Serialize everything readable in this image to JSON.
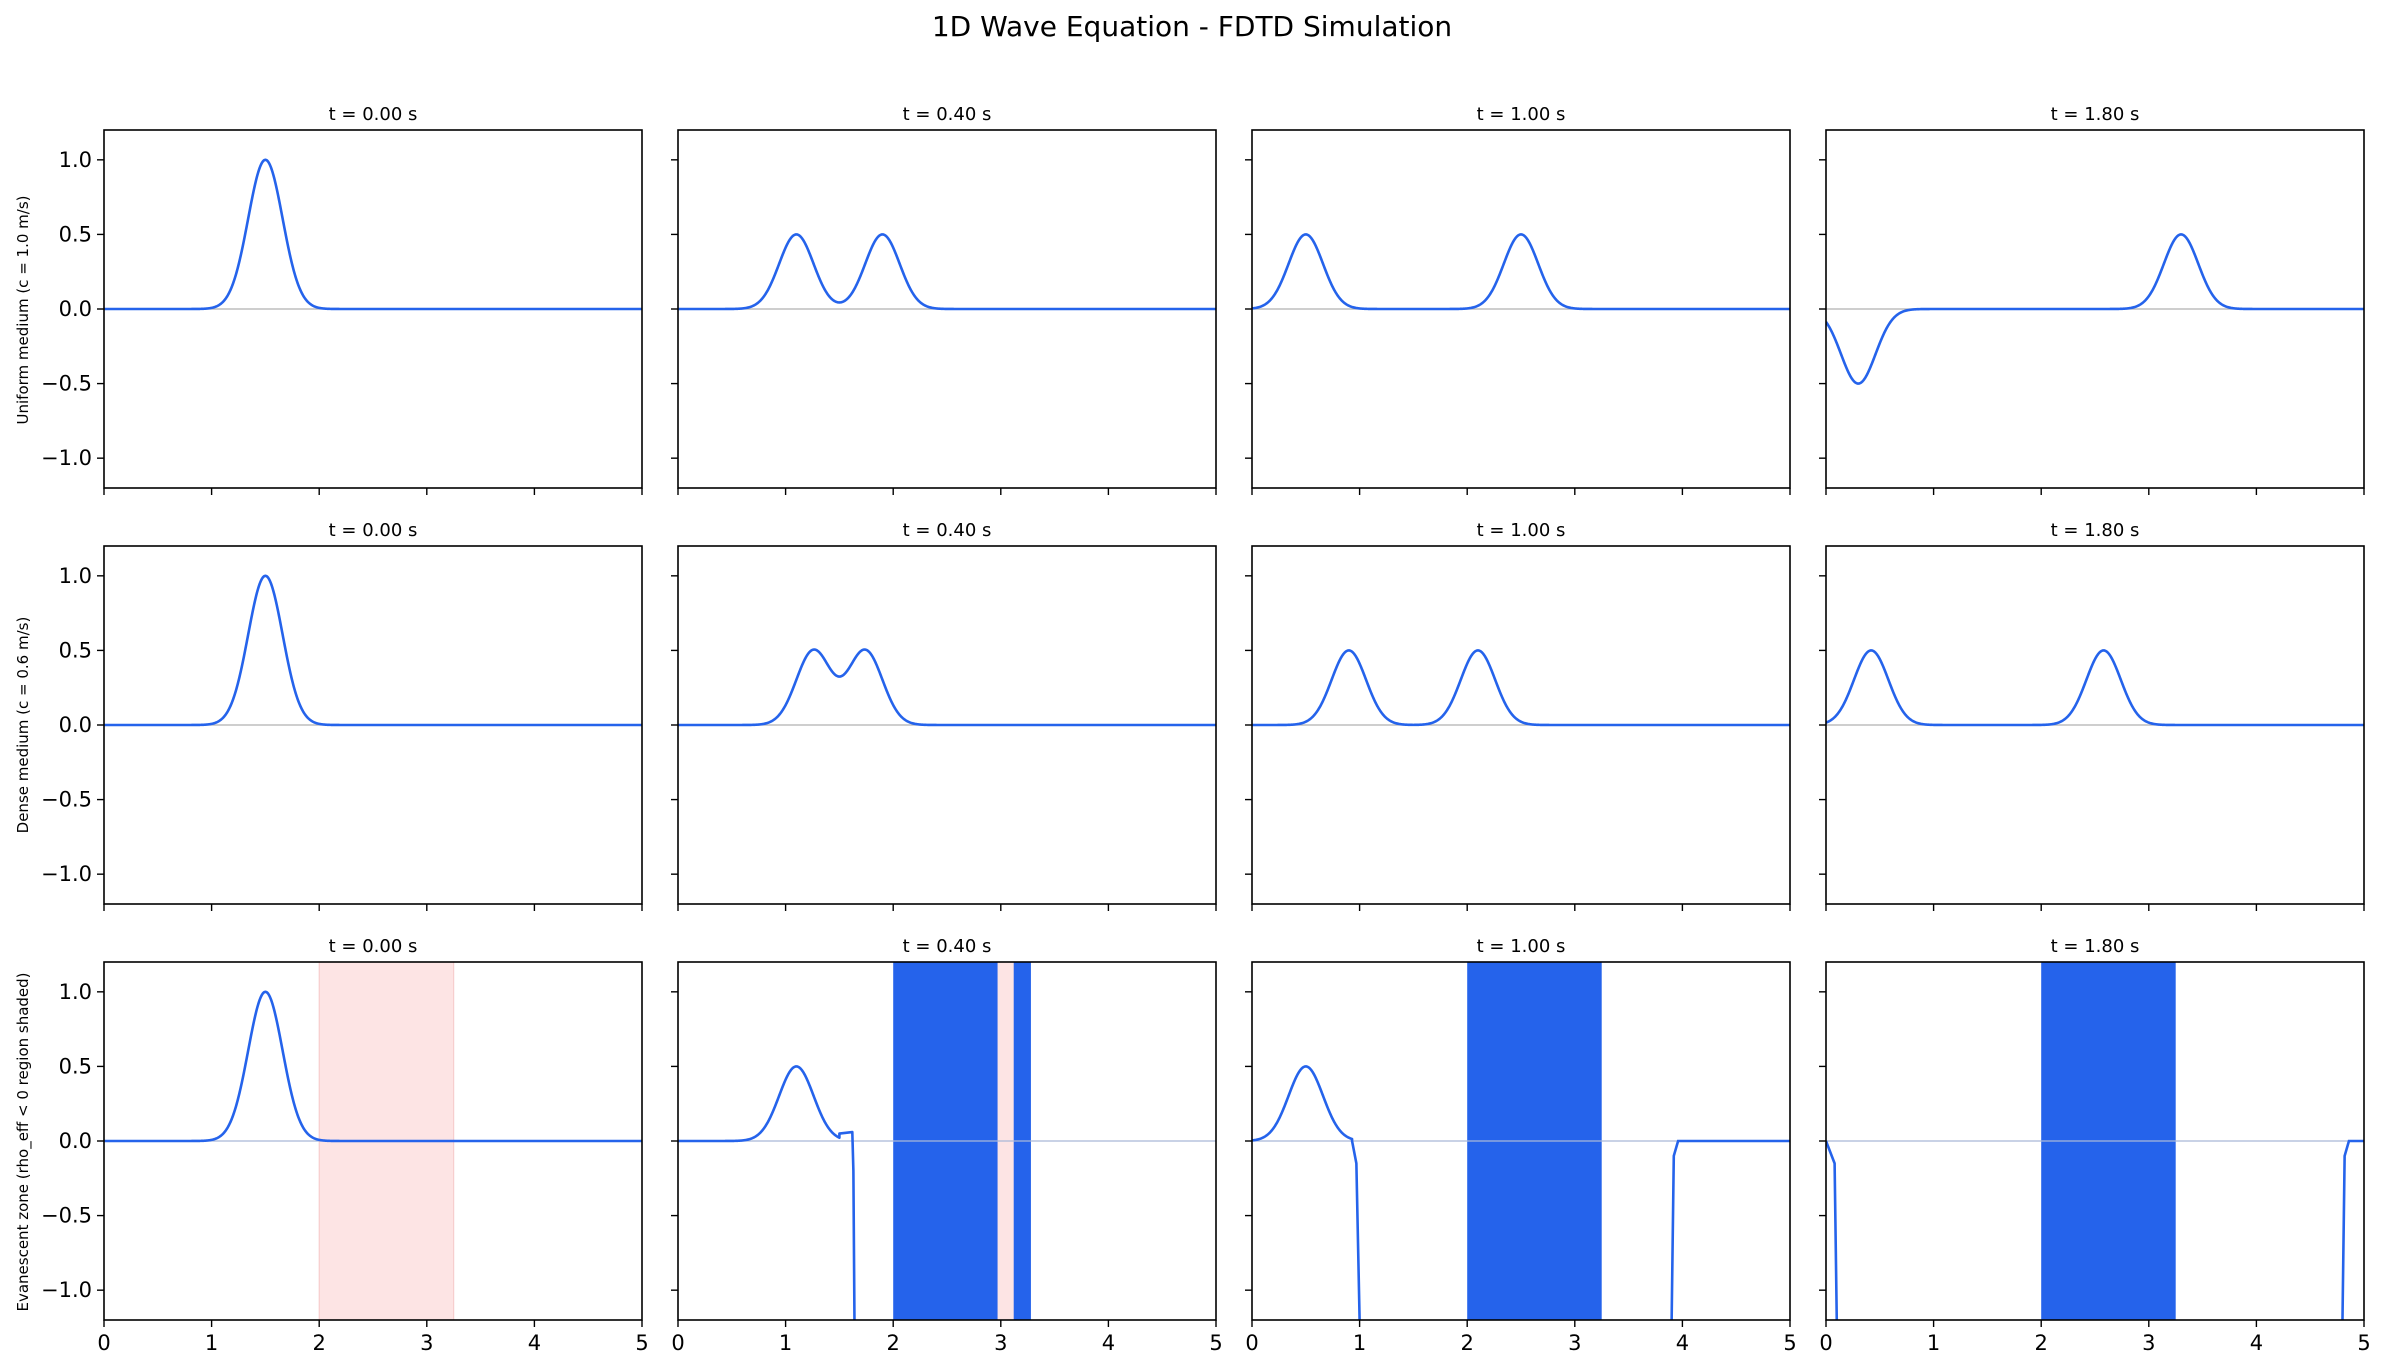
{
  "title": "1D Wave Equation - FDTD Simulation",
  "row_labels": [
    "Uniform medium  (c = 1.0 m/s)",
    "Dense medium    (c = 0.6 m/s)",
    "Evanescent zone (rho_eff < 0 region shaded)"
  ],
  "colors": {
    "wave": "#2563eb",
    "zero_line": "#b0b0b0",
    "zero_line_evanescent": "#a9b8d8",
    "evanescent_shade": "#fde4e4",
    "axes": "#000000"
  },
  "chart_data": {
    "type": "line",
    "grid": false,
    "xlim": [
      0,
      5
    ],
    "ylim": [
      -1.2,
      1.2
    ],
    "x_ticks": [
      "0",
      "1",
      "2",
      "3",
      "4",
      "5"
    ],
    "y_ticks": [
      "1.0",
      "0.5",
      "0.0",
      "−0.5",
      "−1.0"
    ],
    "x_tick_values": [
      0,
      1,
      2,
      3,
      4,
      5
    ],
    "y_tick_values": [
      1.0,
      0.5,
      0.0,
      -0.5,
      -1.0
    ],
    "panel_titles": [
      "t = 0.00 s",
      "t = 0.40 s",
      "t = 1.00 s",
      "t = 1.80 s"
    ],
    "shaded_region": [
      2.0,
      3.25
    ],
    "rows": [
      {
        "panels": [
          {
            "pulses": [
              {
                "center": 1.5,
                "amp": 1.0
              }
            ]
          },
          {
            "pulses": [
              {
                "center": 1.1,
                "amp": 0.5
              },
              {
                "center": 1.9,
                "amp": 0.5
              }
            ]
          },
          {
            "pulses": [
              {
                "center": 0.5,
                "amp": 0.5
              },
              {
                "center": 2.5,
                "amp": 0.5
              }
            ]
          },
          {
            "pulses": [
              {
                "center": 0.3,
                "amp": -0.5
              },
              {
                "center": 3.3,
                "amp": 0.5
              }
            ]
          }
        ]
      },
      {
        "panels": [
          {
            "pulses": [
              {
                "center": 1.5,
                "amp": 1.0
              }
            ]
          },
          {
            "pulses": [
              {
                "center": 1.26,
                "amp": 0.5
              },
              {
                "center": 1.74,
                "amp": 0.5
              }
            ]
          },
          {
            "pulses": [
              {
                "center": 0.9,
                "amp": 0.5
              },
              {
                "center": 2.1,
                "amp": 0.5
              }
            ]
          },
          {
            "pulses": [
              {
                "center": 0.42,
                "amp": 0.5
              },
              {
                "center": 2.58,
                "amp": 0.5
              }
            ]
          }
        ]
      },
      {
        "panels": [
          {
            "shade": true,
            "pulses": [
              {
                "center": 1.5,
                "amp": 1.0
              }
            ]
          },
          {
            "pulses": [
              {
                "center": 1.1,
                "amp": 0.5
              }
            ],
            "extra_points": [
              [
                1.5,
                0.05
              ],
              [
                1.62,
                0.06
              ],
              [
                1.63,
                -0.2
              ],
              [
                1.64,
                -1.2
              ]
            ],
            "filled_band": [
              2.0,
              3.28
            ],
            "band_gap": [
              2.97,
              3.12
            ]
          },
          {
            "pulses": [
              {
                "center": 0.5,
                "amp": 0.5
              }
            ],
            "extra_points": [
              [
                0.93,
                0.0
              ],
              [
                0.97,
                -0.15
              ],
              [
                1.0,
                -1.2
              ]
            ],
            "filled_band": [
              2.0,
              3.25
            ],
            "tail_points": [
              [
                3.9,
                -1.2
              ],
              [
                3.92,
                -0.1
              ],
              [
                3.96,
                0.0
              ],
              [
                5.0,
                0.0
              ]
            ]
          },
          {
            "pulses": [],
            "extra_points": [
              [
                0.0,
                0.0
              ],
              [
                0.08,
                -0.15
              ],
              [
                0.1,
                -1.2
              ]
            ],
            "filled_band": [
              2.0,
              3.25
            ],
            "tail_points": [
              [
                4.8,
                -1.2
              ],
              [
                4.82,
                -0.1
              ],
              [
                4.86,
                0.0
              ],
              [
                5.0,
                0.0
              ]
            ]
          }
        ]
      }
    ]
  }
}
